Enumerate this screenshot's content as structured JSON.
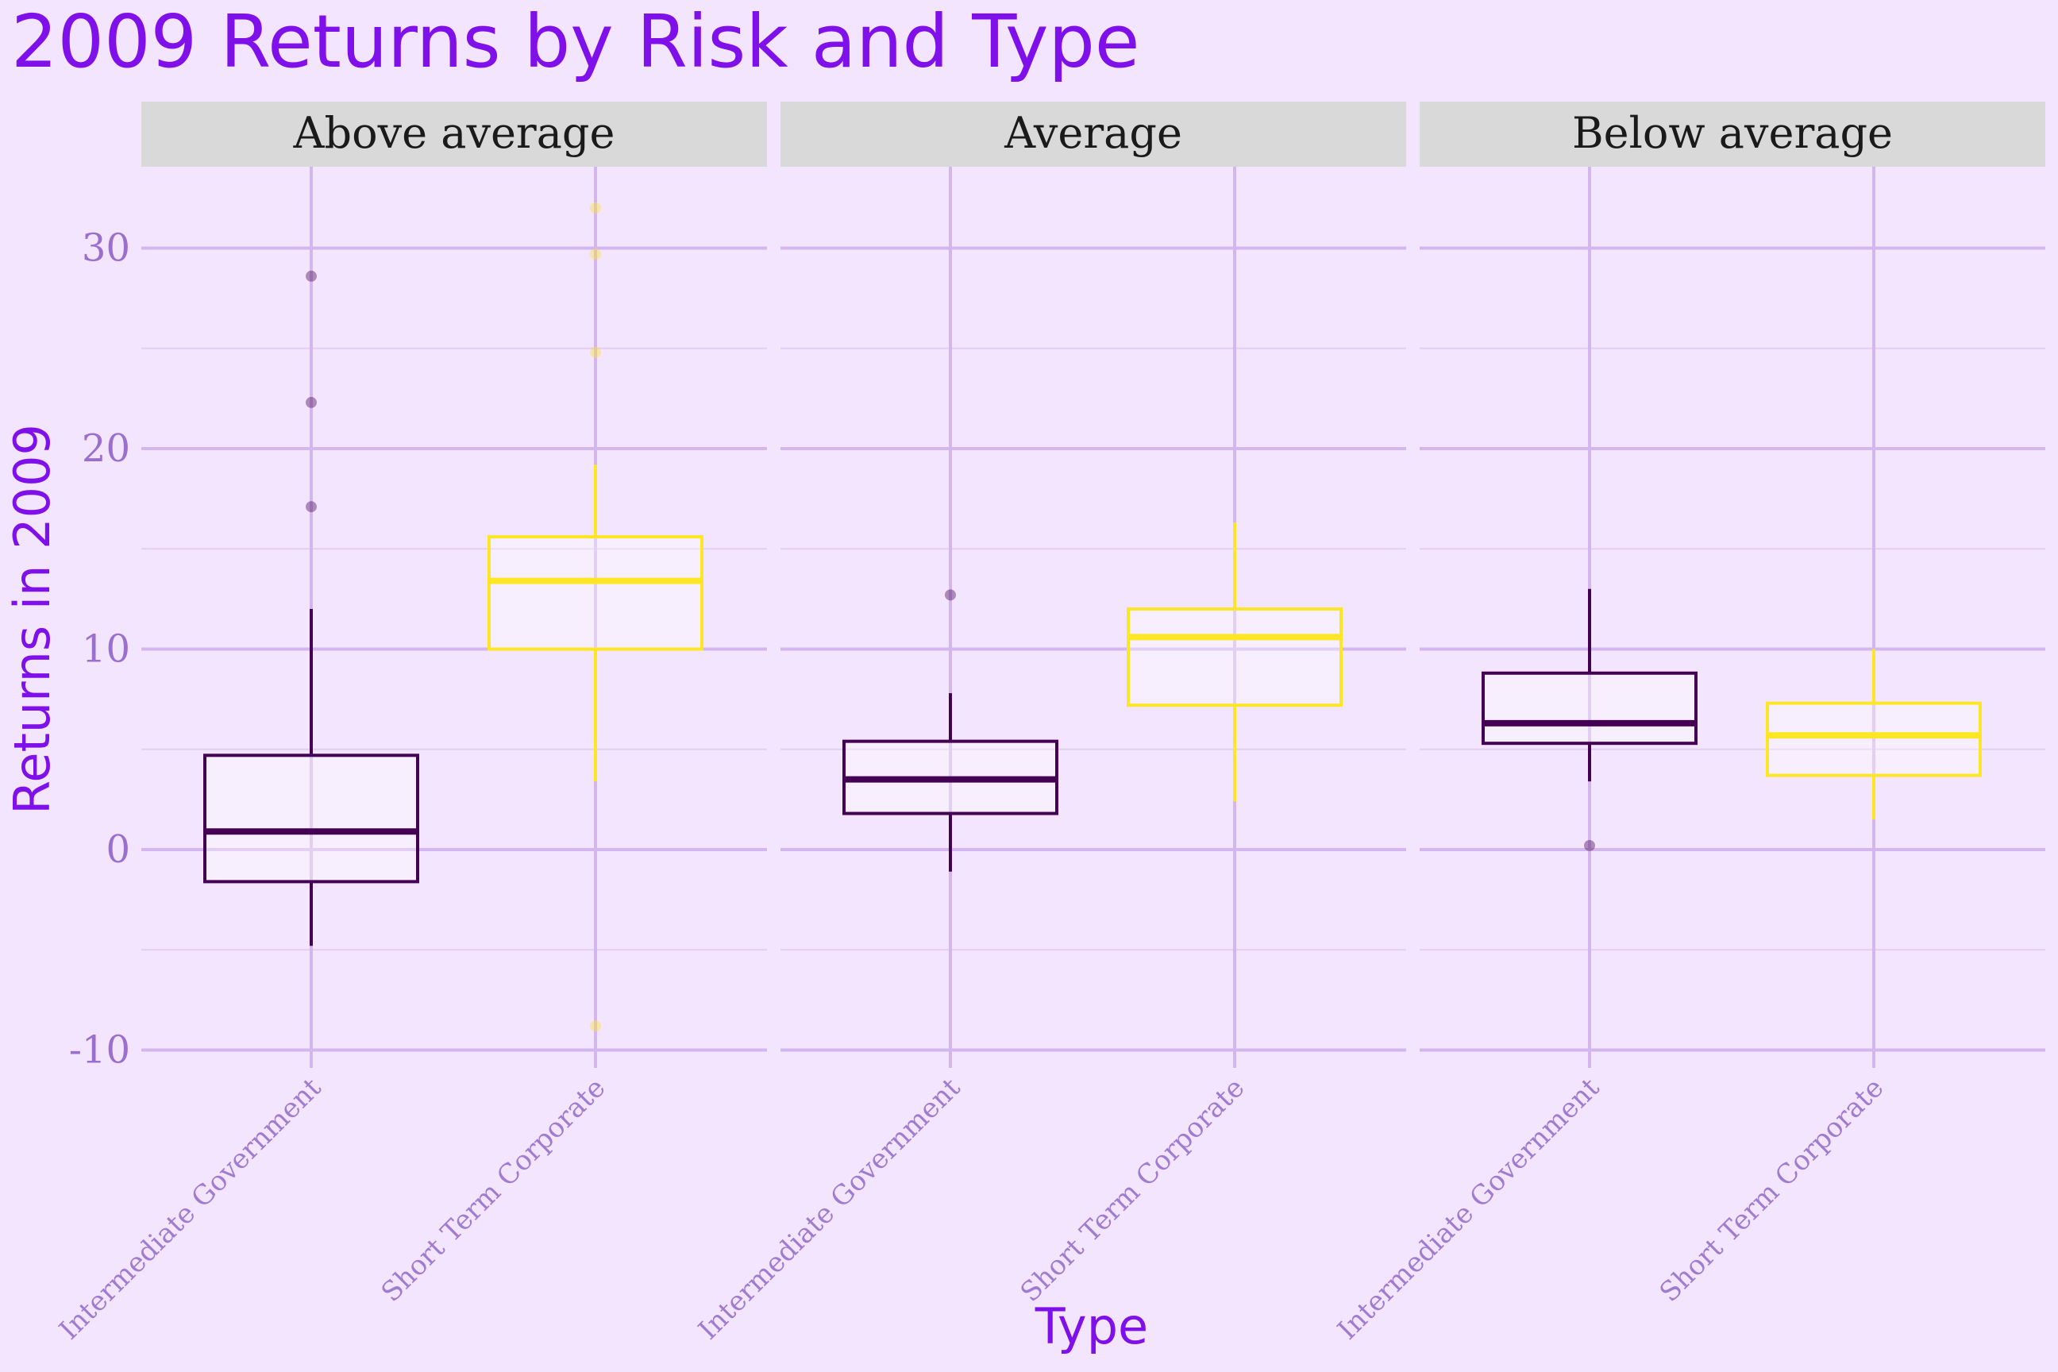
{
  "chart_data": {
    "type": "boxplot",
    "title": "2009 Returns by Risk and Type",
    "xlabel": "Type",
    "ylabel": "Returns in 2009",
    "ylim": [
      -10,
      33
    ],
    "yticks": [
      "-10",
      "0",
      "10",
      "20",
      "30"
    ],
    "categories": [
      "Intermediate Government",
      "Short Term Corporate"
    ],
    "colors": {
      "Intermediate Government": "#440154",
      "Short Term Corporate": "#fde725",
      "background": "#f3e5fd",
      "strip": "#d9d9d9",
      "grid": "#d4b6ee"
    },
    "panels": [
      {
        "label": "Above average",
        "boxes": [
          {
            "category": "Intermediate Government",
            "whisker_low": -4.8,
            "q1": -1.6,
            "median": 0.9,
            "q3": 4.7,
            "whisker_high": 12.0,
            "outliers": [
              17.1,
              22.3,
              28.6
            ]
          },
          {
            "category": "Short Term Corporate",
            "whisker_low": 3.4,
            "q1": 10.0,
            "median": 13.4,
            "q3": 15.6,
            "whisker_high": 19.2,
            "outliers": [
              24.8,
              29.7,
              32.0,
              -8.8
            ]
          }
        ]
      },
      {
        "label": "Average",
        "boxes": [
          {
            "category": "Intermediate Government",
            "whisker_low": -1.1,
            "q1": 1.8,
            "median": 3.5,
            "q3": 5.4,
            "whisker_high": 7.8,
            "outliers": [
              12.7
            ]
          },
          {
            "category": "Short Term Corporate",
            "whisker_low": 2.4,
            "q1": 7.2,
            "median": 10.6,
            "q3": 12.0,
            "whisker_high": 16.3,
            "outliers": []
          }
        ]
      },
      {
        "label": "Below average",
        "boxes": [
          {
            "category": "Intermediate Government",
            "whisker_low": 3.4,
            "q1": 5.3,
            "median": 6.3,
            "q3": 8.8,
            "whisker_high": 13.0,
            "outliers": [
              0.2
            ]
          },
          {
            "category": "Short Term Corporate",
            "whisker_low": 1.5,
            "q1": 3.7,
            "median": 5.7,
            "q3": 7.3,
            "whisker_high": 10.0,
            "outliers": []
          }
        ]
      }
    ]
  }
}
